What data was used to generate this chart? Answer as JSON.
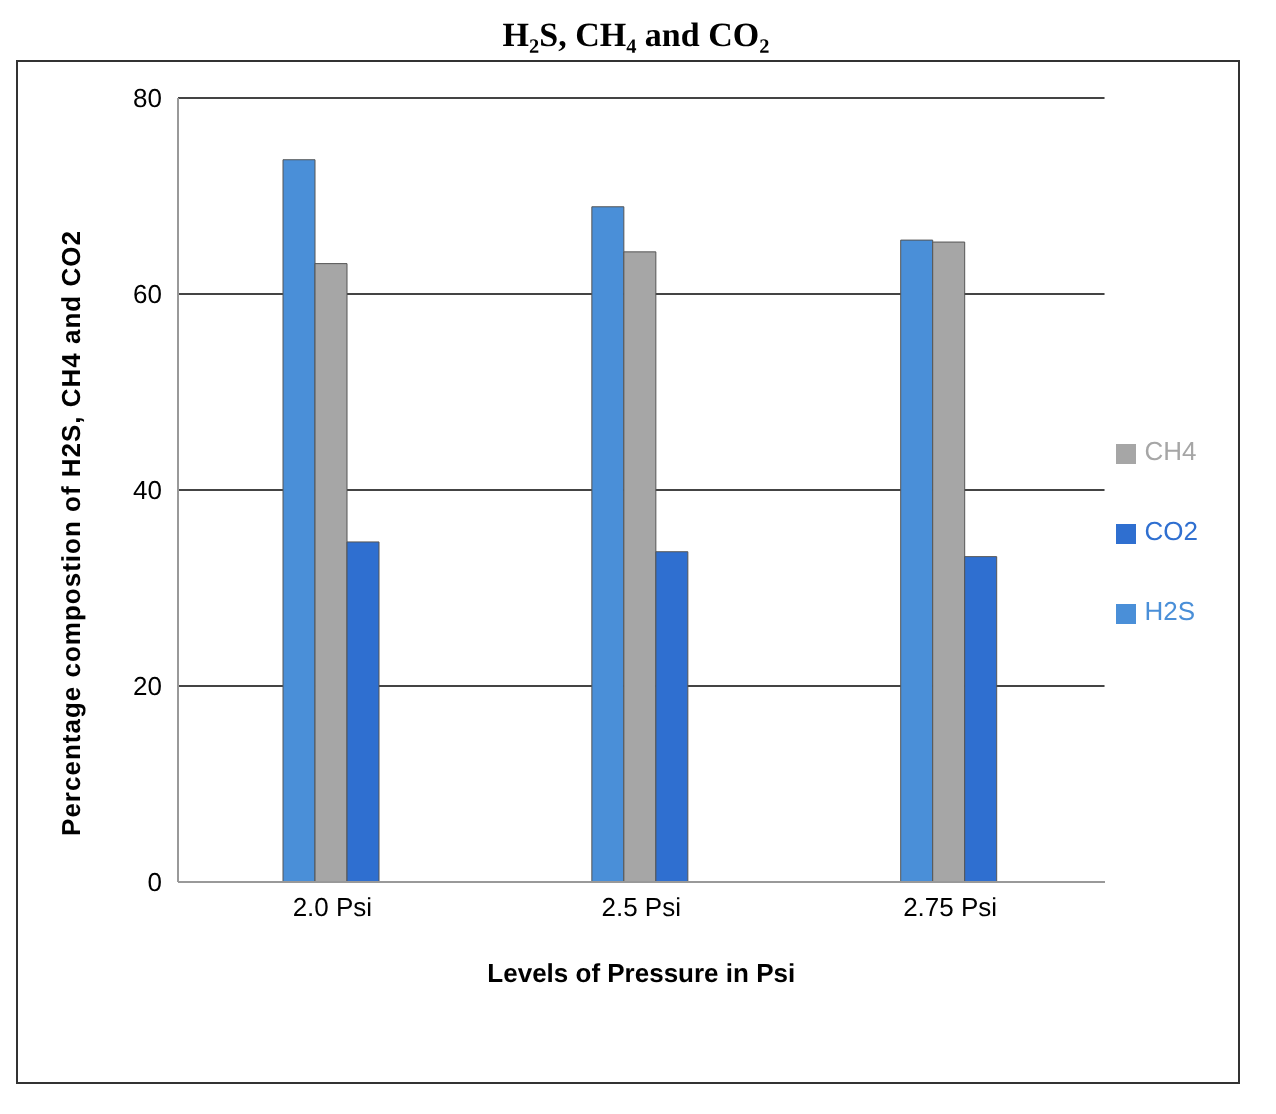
{
  "chart_data": {
    "type": "bar",
    "title": "H₂S, CH₄ and CO₂",
    "xlabel": "Levels of Pressure in Psi",
    "ylabel": "Percentage compostion of H2S, CH4 and CO2",
    "categories": [
      "2.0 Psi",
      "2.5 Psi",
      "2.75 Psi"
    ],
    "series": [
      {
        "name": "H2S",
        "color": "#4a8fd8",
        "values": [
          73.7,
          68.9,
          65.5
        ]
      },
      {
        "name": "CH4",
        "color": "#a6a6a6",
        "values": [
          63.1,
          64.3,
          65.3
        ]
      },
      {
        "name": "CO2",
        "color": "#2f6fd0",
        "values": [
          34.7,
          33.7,
          33.2
        ]
      }
    ],
    "ylim": [
      0,
      80
    ],
    "yticks": [
      0,
      20,
      40,
      60,
      80
    ],
    "grid": "y",
    "legend": "right"
  }
}
